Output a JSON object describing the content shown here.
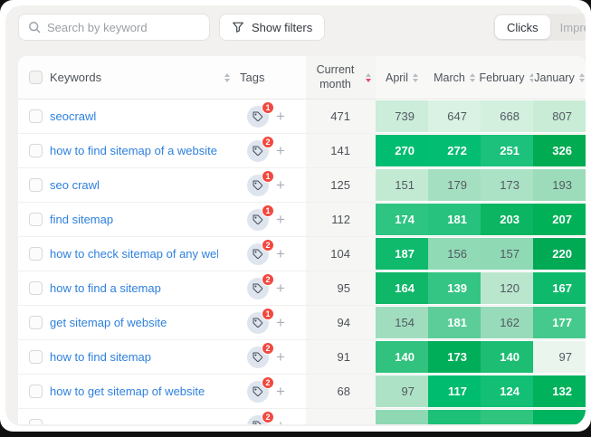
{
  "toolbar": {
    "search": {
      "placeholder": "Search by keyword"
    },
    "filters_button": {
      "label": "Show filters"
    },
    "view_toggle": {
      "active": "Clicks",
      "options": [
        {
          "label": "Clicks"
        },
        {
          "label": "Impressions"
        }
      ]
    }
  },
  "table": {
    "headers": {
      "keywords": "Keywords",
      "tags": "Tags",
      "current_month": "Current month",
      "current_month_sort": "desc",
      "months": [
        "April",
        "March",
        "February",
        "January"
      ]
    },
    "rows": [
      {
        "keyword": "seocrawl",
        "tag_count": "1",
        "current_month": "471",
        "cells": [
          {
            "v": "739",
            "bg": "#cbedd9",
            "fg": "dark"
          },
          {
            "v": "647",
            "bg": "#d9f2e3",
            "fg": "dark"
          },
          {
            "v": "668",
            "bg": "#d3efde",
            "fg": "dark"
          },
          {
            "v": "807",
            "bg": "#c9ecd7",
            "fg": "dark"
          }
        ]
      },
      {
        "keyword": "how to find sitemap of a website",
        "tag_count": "2",
        "current_month": "141",
        "cells": [
          {
            "v": "270",
            "bg": "#00bd71",
            "fg": "white"
          },
          {
            "v": "272",
            "bg": "#02bd72",
            "fg": "white"
          },
          {
            "v": "251",
            "bg": "#1cc17c",
            "fg": "white"
          },
          {
            "v": "326",
            "bg": "#00ab51",
            "fg": "white"
          }
        ]
      },
      {
        "keyword": "seo crawl",
        "tag_count": "1",
        "current_month": "125",
        "cells": [
          {
            "v": "151",
            "bg": "#c2ead3",
            "fg": "dark"
          },
          {
            "v": "179",
            "bg": "#a5dfc1",
            "fg": "dark"
          },
          {
            "v": "173",
            "bg": "#abe1c5",
            "fg": "dark"
          },
          {
            "v": "193",
            "bg": "#9cdcba",
            "fg": "dark"
          }
        ]
      },
      {
        "keyword": "find sitemap",
        "tag_count": "1",
        "current_month": "112",
        "cells": [
          {
            "v": "174",
            "bg": "#2ec482",
            "fg": "white"
          },
          {
            "v": "181",
            "bg": "#27c27e",
            "fg": "white"
          },
          {
            "v": "203",
            "bg": "#0cb562",
            "fg": "white"
          },
          {
            "v": "207",
            "bg": "#00b158",
            "fg": "white"
          }
        ]
      },
      {
        "keyword": "how to check sitemap of any website",
        "tag_count": "2",
        "current_month": "104",
        "cells": [
          {
            "v": "187",
            "bg": "#0fba6d",
            "fg": "white"
          },
          {
            "v": "156",
            "bg": "#90dab6",
            "fg": "dark"
          },
          {
            "v": "157",
            "bg": "#8fd9b5",
            "fg": "dark"
          },
          {
            "v": "220",
            "bg": "#00a954",
            "fg": "white"
          }
        ]
      },
      {
        "keyword": "how to find a sitemap",
        "tag_count": "2",
        "current_month": "95",
        "cells": [
          {
            "v": "164",
            "bg": "#10b769",
            "fg": "white"
          },
          {
            "v": "139",
            "bg": "#34c584",
            "fg": "white"
          },
          {
            "v": "120",
            "bg": "#bae6cd",
            "fg": "dark"
          },
          {
            "v": "167",
            "bg": "#0eb96c",
            "fg": "white"
          }
        ]
      },
      {
        "keyword": "get sitemap of website",
        "tag_count": "1",
        "current_month": "94",
        "cells": [
          {
            "v": "154",
            "bg": "#a0ddbf",
            "fg": "dark"
          },
          {
            "v": "181",
            "bg": "#5ccd99",
            "fg": "white"
          },
          {
            "v": "162",
            "bg": "#98dbba",
            "fg": "dark"
          },
          {
            "v": "177",
            "bg": "#46c98d",
            "fg": "white"
          }
        ]
      },
      {
        "keyword": "how to find sitemap",
        "tag_count": "2",
        "current_month": "91",
        "cells": [
          {
            "v": "140",
            "bg": "#30c27e",
            "fg": "white"
          },
          {
            "v": "173",
            "bg": "#00ae59",
            "fg": "white"
          },
          {
            "v": "140",
            "bg": "#1dbd74",
            "fg": "white"
          },
          {
            "v": "97",
            "bg": "#eaf5ee",
            "fg": "dark"
          }
        ]
      },
      {
        "keyword": "how to get sitemap of website",
        "tag_count": "2",
        "current_month": "68",
        "cells": [
          {
            "v": "97",
            "bg": "#aee2c6",
            "fg": "dark"
          },
          {
            "v": "117",
            "bg": "#00bc6e",
            "fg": "white"
          },
          {
            "v": "124",
            "bg": "#12bf74",
            "fg": "white"
          },
          {
            "v": "132",
            "bg": "#00b25c",
            "fg": "white"
          }
        ]
      },
      {
        "keyword": "",
        "tag_count": "2",
        "current_month": "",
        "cells": [
          {
            "v": "",
            "bg": "#8ed9b4",
            "fg": "dark"
          },
          {
            "v": "",
            "bg": "#1dc077",
            "fg": "white"
          },
          {
            "v": "",
            "bg": "#2fc57f",
            "fg": "white"
          },
          {
            "v": "",
            "bg": "#00b35f",
            "fg": "white"
          }
        ]
      }
    ]
  },
  "colors": {
    "canvas_bg": "#f2f1ef",
    "heat_green_strong": "#00ab51",
    "heat_green": "#00bd71",
    "heat_green_light": "#cbedd9",
    "badge_red": "#f2483f",
    "link_blue": "#2f80dd",
    "sort_active_red": "#e5496b"
  }
}
